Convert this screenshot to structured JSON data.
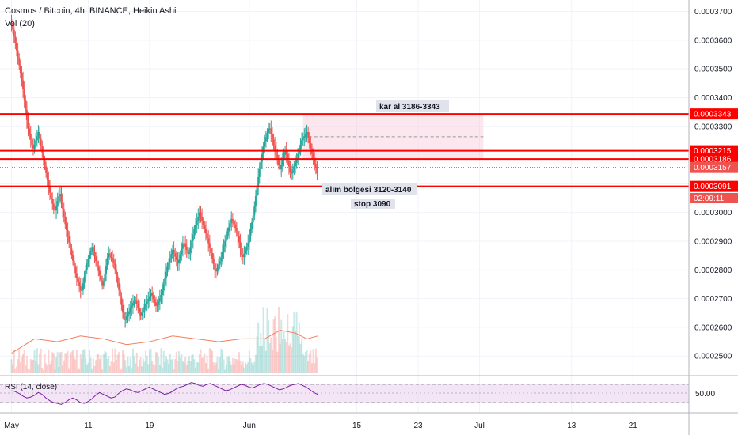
{
  "header": {
    "title": "Cosmos / Bitcoin, 4h, BINANCE, Heikin Ashi",
    "volume_label": "Vol (20)"
  },
  "rsi": {
    "label": "RSI (14, close)",
    "level_label": "50.00",
    "values": [
      56,
      54,
      50,
      44,
      40,
      42,
      46,
      52,
      48,
      40,
      34,
      30,
      28,
      26,
      30,
      36,
      40,
      36,
      30,
      28,
      32,
      38,
      46,
      52,
      48,
      44,
      40,
      42,
      50,
      56,
      60,
      58,
      54,
      52,
      56,
      60,
      64,
      60,
      56,
      52,
      48,
      50,
      54,
      60,
      64,
      66,
      70,
      74,
      72,
      68,
      66,
      70,
      72,
      68,
      64,
      60,
      56,
      58,
      62,
      66,
      70,
      68,
      64,
      62,
      66,
      70,
      72,
      70,
      66,
      62,
      58,
      60,
      64,
      68,
      70,
      72,
      68,
      64,
      58,
      52,
      48
    ]
  },
  "price_levels": [
    {
      "label": "0.0003343",
      "value": 0.0003343,
      "color": "#ff0000"
    },
    {
      "label": "0.0003215",
      "value": 0.0003215,
      "color": "#ff0000"
    },
    {
      "label": "0.0003186",
      "value": 0.0003186,
      "color": "#ff0000"
    },
    {
      "label": "0.0003157",
      "value": 0.0003157,
      "color": "#ef5350"
    },
    {
      "label": "0.0003091",
      "value": 0.0003091,
      "color": "#ff0000"
    }
  ],
  "countdown": "02:09:11",
  "annotations": {
    "take_profit": "kar al 3186-3343",
    "buy_zone": "alım bölgesi 3120-3140",
    "stop": "stop 3090"
  },
  "chart_data": {
    "type": "candlestick",
    "title": "Cosmos / Bitcoin, 4h, BINANCE, Heikin Ashi",
    "y_ticks": [
      "0.0003700",
      "0.0003600",
      "0.0003500",
      "0.0003400",
      "0.0003300",
      "0.0003200",
      "0.0003100",
      "0.0003000",
      "0.0002900",
      "0.0002800",
      "0.0002700",
      "0.0002600",
      "0.0002500"
    ],
    "y_tick_values": [
      0.00037,
      0.00036,
      0.00035,
      0.00034,
      0.00033,
      0.00032,
      0.00031,
      0.0003,
      0.00029,
      0.00028,
      0.00027,
      0.00026,
      0.00025
    ],
    "ylim": [
      0.000244,
      0.000374
    ],
    "x_ticks": [
      "May",
      "11",
      "19",
      "Jun",
      "15",
      "23",
      "Jul",
      "13",
      "21"
    ],
    "x_tick_days": [
      0,
      10,
      18,
      31,
      45,
      53,
      61,
      73,
      81
    ],
    "xlim_days": [
      -1.5,
      88.3
    ],
    "close_path": [
      [
        0.0,
        0.000366
      ],
      [
        0.7,
        0.000356
      ],
      [
        1.4,
        0.000345
      ],
      [
        2.1,
        0.00033
      ],
      [
        2.8,
        0.000322
      ],
      [
        3.5,
        0.000328
      ],
      [
        4.2,
        0.000318
      ],
      [
        4.9,
        0.000308
      ],
      [
        5.6,
        0.0003
      ],
      [
        6.3,
        0.000307
      ],
      [
        7.0,
        0.000296
      ],
      [
        7.7,
        0.000287
      ],
      [
        8.4,
        0.000278
      ],
      [
        9.1,
        0.000272
      ],
      [
        9.8,
        0.000282
      ],
      [
        10.5,
        0.000288
      ],
      [
        11.2,
        0.000281
      ],
      [
        11.9,
        0.000274
      ],
      [
        12.6,
        0.000286
      ],
      [
        13.3,
        0.000283
      ],
      [
        14.0,
        0.000273
      ],
      [
        14.7,
        0.000262
      ],
      [
        15.4,
        0.000266
      ],
      [
        16.1,
        0.00027
      ],
      [
        16.8,
        0.000264
      ],
      [
        17.5,
        0.000268
      ],
      [
        18.2,
        0.000272
      ],
      [
        18.9,
        0.000267
      ],
      [
        19.6,
        0.000272
      ],
      [
        20.3,
        0.000281
      ],
      [
        21.0,
        0.000287
      ],
      [
        21.7,
        0.000282
      ],
      [
        22.4,
        0.00029
      ],
      [
        23.1,
        0.000285
      ],
      [
        23.8,
        0.000294
      ],
      [
        24.5,
        0.0003
      ],
      [
        25.2,
        0.000294
      ],
      [
        25.9,
        0.000287
      ],
      [
        26.6,
        0.000279
      ],
      [
        27.3,
        0.000284
      ],
      [
        28.0,
        0.000292
      ],
      [
        28.7,
        0.000298
      ],
      [
        29.4,
        0.000293
      ],
      [
        30.1,
        0.000284
      ],
      [
        30.8,
        0.000289
      ],
      [
        31.5,
        0.000299
      ],
      [
        32.2,
        0.000313
      ],
      [
        32.9,
        0.000324
      ],
      [
        33.6,
        0.00033
      ],
      [
        34.3,
        0.000322
      ],
      [
        35.0,
        0.000315
      ],
      [
        35.7,
        0.000322
      ],
      [
        36.4,
        0.000313
      ],
      [
        37.1,
        0.000318
      ],
      [
        37.8,
        0.000325
      ],
      [
        38.5,
        0.000328
      ],
      [
        39.2,
        0.00032
      ],
      [
        39.9,
        0.000313
      ]
    ],
    "volume_ma": [
      [
        0.0,
        0.000251
      ],
      [
        3.0,
        0.000256
      ],
      [
        6.0,
        0.000255
      ],
      [
        9.0,
        0.000257
      ],
      [
        12.0,
        0.000256
      ],
      [
        15.0,
        0.000254
      ],
      [
        18.0,
        0.000255
      ],
      [
        21.0,
        0.000257
      ],
      [
        24.0,
        0.000256
      ],
      [
        27.0,
        0.000255
      ],
      [
        30.0,
        0.000256
      ],
      [
        33.0,
        0.000256
      ],
      [
        35.0,
        0.000259
      ],
      [
        37.0,
        0.000258
      ],
      [
        38.5,
        0.000256
      ],
      [
        39.9,
        0.000257
      ]
    ],
    "zones": {
      "take_profit": [
        0.0003186,
        0.0003343
      ],
      "zone_start_day": 38.0,
      "zone_end_day": 61.5,
      "dashed_mid": 0.0003264
    }
  }
}
